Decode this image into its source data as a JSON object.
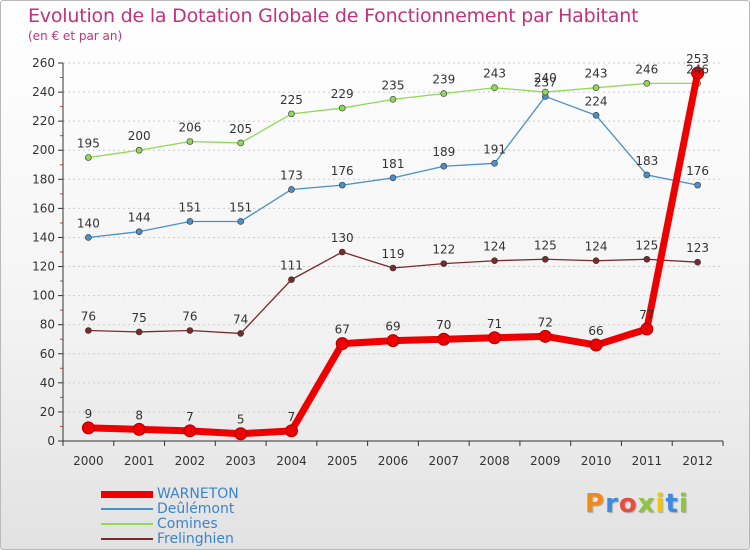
{
  "title": "Evolution de la Dotation Globale de Fonctionnement par Habitant",
  "subtitle": "(en € et par an)",
  "chart_data": {
    "type": "line",
    "title": "Evolution de la Dotation Globale de Fonctionnement par Habitant",
    "subtitle": "(en € et par an)",
    "xlabel": "",
    "ylabel": "",
    "x": [
      2000,
      2001,
      2002,
      2003,
      2004,
      2005,
      2006,
      2007,
      2008,
      2009,
      2010,
      2011,
      2012
    ],
    "ylim": [
      0,
      260
    ],
    "yticks": [
      0,
      20,
      40,
      60,
      80,
      100,
      120,
      140,
      160,
      180,
      200,
      220,
      240,
      260
    ],
    "grid": "horizontal dashed",
    "legend_position": "bottom-left",
    "series": [
      {
        "name": "WARNETON",
        "color": "#ee0000",
        "values": [
          9,
          8,
          7,
          5,
          7,
          67,
          69,
          70,
          71,
          72,
          66,
          77,
          253
        ]
      },
      {
        "name": "Deûlémont",
        "color": "#4a8fc9",
        "values": [
          140,
          144,
          151,
          151,
          173,
          176,
          181,
          189,
          191,
          237,
          224,
          183,
          176
        ]
      },
      {
        "name": "Comines",
        "color": "#8fd858",
        "values": [
          195,
          200,
          206,
          205,
          225,
          229,
          235,
          239,
          243,
          240,
          243,
          246,
          246
        ]
      },
      {
        "name": "Frelinghien",
        "color": "#7a2a2a",
        "values": [
          76,
          75,
          76,
          74,
          111,
          130,
          119,
          122,
          124,
          125,
          124,
          125,
          123
        ]
      }
    ]
  },
  "colors": {
    "title": "#c0327a",
    "legend_text": "#3b84c9",
    "axis": "#333333",
    "grid": "#cccccc"
  },
  "logo": {
    "text": "Proxiti",
    "letters": [
      "P",
      "r",
      "o",
      "x",
      "i",
      "t",
      "i"
    ],
    "colors": [
      "#f08a1c",
      "#3c8be0",
      "#e84c3d",
      "#8cc63f",
      "#f5c400",
      "#3c8be0",
      "#8cc63f"
    ]
  }
}
